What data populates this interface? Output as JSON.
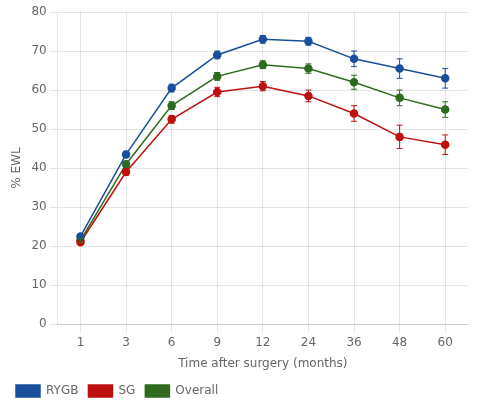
{
  "chart_data": {
    "type": "line",
    "xlabel": "Time after surgery (months)",
    "ylabel": "% EWL",
    "categories": [
      "1",
      "3",
      "6",
      "9",
      "12",
      "24",
      "36",
      "48",
      "60"
    ],
    "series": [
      {
        "name": "RYGB",
        "color": "#1a4f9c",
        "values": [
          22.5,
          43.5,
          60.5,
          69.0,
          73.0,
          72.5,
          68.0,
          65.5,
          63.0
        ],
        "errors": [
          0.5,
          0.8,
          1.0,
          1.0,
          1.0,
          1.0,
          2.0,
          2.5,
          2.5
        ]
      },
      {
        "name": "SG",
        "color": "#bf1010",
        "values": [
          21.0,
          39.0,
          52.5,
          59.5,
          61.0,
          58.5,
          54.0,
          48.0,
          46.0
        ],
        "errors": [
          0.5,
          0.8,
          1.0,
          1.2,
          1.2,
          1.5,
          2.0,
          3.0,
          2.5
        ]
      },
      {
        "name": "Overall",
        "color": "#2e6b1e",
        "values": [
          21.5,
          41.0,
          56.0,
          63.5,
          66.5,
          65.5,
          62.0,
          58.0,
          55.0
        ],
        "errors": [
          0.5,
          0.8,
          1.0,
          1.0,
          1.0,
          1.2,
          1.8,
          2.0,
          2.0
        ]
      }
    ],
    "ylim": [
      0,
      80
    ],
    "yticks": [
      0,
      10,
      20,
      30,
      40,
      50,
      60,
      70,
      80
    ],
    "grid": true,
    "legend": "bottom",
    "marker": "circle"
  }
}
